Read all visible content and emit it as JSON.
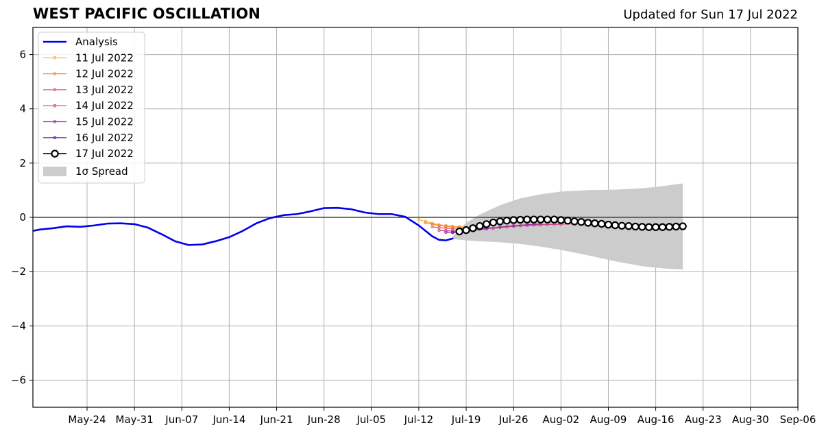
{
  "header": {
    "title": "WEST PACIFIC OSCILLATION",
    "updated": "Updated for Sun 17 Jul 2022"
  },
  "chart_data": {
    "type": "line",
    "title": "WEST PACIFIC OSCILLATION",
    "xlabel": "",
    "ylabel": "",
    "x_range": [
      "2022-05-16",
      "2022-09-06"
    ],
    "ylim": [
      -7,
      7
    ],
    "yticks": [
      -6,
      -4,
      -2,
      0,
      2,
      4,
      6
    ],
    "ytick_labels": [
      "−6",
      "−4",
      "−2",
      "0",
      "2",
      "4",
      "6"
    ],
    "xtick_dates": [
      "2022-05-24",
      "2022-05-31",
      "2022-06-07",
      "2022-06-14",
      "2022-06-21",
      "2022-06-28",
      "2022-07-05",
      "2022-07-12",
      "2022-07-19",
      "2022-07-26",
      "2022-08-02",
      "2022-08-09",
      "2022-08-16",
      "2022-08-23",
      "2022-08-30",
      "2022-09-06"
    ],
    "xtick_labels": [
      "May-24",
      "May-31",
      "Jun-07",
      "Jun-14",
      "Jun-21",
      "Jun-28",
      "Jul-05",
      "Jul-12",
      "Jul-19",
      "Jul-26",
      "Aug-02",
      "Aug-09",
      "Aug-16",
      "Aug-23",
      "Aug-30",
      "Sep-06"
    ],
    "grid": true,
    "legend_position": "top-left",
    "spread": {
      "name": "1σ Spread",
      "color": "#cccccc",
      "x": [
        "2022-07-17",
        "2022-07-19",
        "2022-07-21",
        "2022-07-24",
        "2022-07-27",
        "2022-07-30",
        "2022-08-02",
        "2022-08-06",
        "2022-08-10",
        "2022-08-14",
        "2022-08-17",
        "2022-08-20"
      ],
      "upper": [
        -0.7,
        -0.2,
        0.1,
        0.45,
        0.7,
        0.85,
        0.95,
        1.0,
        1.02,
        1.07,
        1.15,
        1.25
      ],
      "lower": [
        -0.8,
        -0.85,
        -0.88,
        -0.92,
        -0.98,
        -1.08,
        -1.2,
        -1.4,
        -1.62,
        -1.8,
        -1.88,
        -1.92
      ]
    },
    "analysis": {
      "name": "Analysis",
      "color": "#0000ee",
      "x": [
        "2022-05-16",
        "2022-05-17",
        "2022-05-19",
        "2022-05-21",
        "2022-05-23",
        "2022-05-25",
        "2022-05-27",
        "2022-05-29",
        "2022-05-31",
        "2022-06-02",
        "2022-06-04",
        "2022-06-06",
        "2022-06-08",
        "2022-06-10",
        "2022-06-12",
        "2022-06-14",
        "2022-06-16",
        "2022-06-18",
        "2022-06-20",
        "2022-06-22",
        "2022-06-24",
        "2022-06-26",
        "2022-06-28",
        "2022-06-30",
        "2022-07-02",
        "2022-07-04",
        "2022-07-06",
        "2022-07-08",
        "2022-07-10",
        "2022-07-12",
        "2022-07-14",
        "2022-07-15",
        "2022-07-16",
        "2022-07-17"
      ],
      "values": [
        -0.5,
        -0.45,
        -0.4,
        -0.33,
        -0.35,
        -0.3,
        -0.23,
        -0.22,
        -0.25,
        -0.38,
        -0.62,
        -0.88,
        -1.02,
        -1.0,
        -0.88,
        -0.73,
        -0.5,
        -0.22,
        -0.03,
        0.08,
        0.12,
        0.22,
        0.34,
        0.35,
        0.3,
        0.18,
        0.12,
        0.12,
        0.02,
        -0.3,
        -0.7,
        -0.83,
        -0.85,
        -0.78
      ]
    },
    "series": [
      {
        "name": "11 Jul 2022",
        "color": "#f5b041",
        "x": [
          "2022-07-12",
          "2022-07-13",
          "2022-07-14",
          "2022-07-15",
          "2022-07-16",
          "2022-07-17",
          "2022-07-18",
          "2022-07-19"
        ],
        "values": [
          -0.08,
          -0.15,
          -0.22,
          -0.27,
          -0.3,
          -0.33,
          -0.35,
          -0.36
        ]
      },
      {
        "name": "12 Jul 2022",
        "color": "#ef8a3e",
        "x": [
          "2022-07-13",
          "2022-07-14",
          "2022-07-15",
          "2022-07-16",
          "2022-07-17",
          "2022-07-18",
          "2022-07-19"
        ],
        "values": [
          -0.2,
          -0.25,
          -0.3,
          -0.33,
          -0.35,
          -0.37,
          -0.38
        ]
      },
      {
        "name": "13 Jul 2022",
        "color": "#e05a6f",
        "x": [
          "2022-07-14",
          "2022-07-15",
          "2022-07-16",
          "2022-07-17",
          "2022-07-18",
          "2022-07-19",
          "2022-07-20",
          "2022-07-22",
          "2022-07-24",
          "2022-07-26",
          "2022-07-28",
          "2022-07-30",
          "2022-08-01",
          "2022-08-04"
        ],
        "values": [
          -0.35,
          -0.38,
          -0.4,
          -0.42,
          -0.44,
          -0.45,
          -0.43,
          -0.4,
          -0.37,
          -0.33,
          -0.3,
          -0.28,
          -0.26,
          -0.24
        ]
      },
      {
        "name": "14 Jul 2022",
        "color": "#c2448f",
        "x": [
          "2022-07-15",
          "2022-07-16",
          "2022-07-17",
          "2022-07-18",
          "2022-07-19",
          "2022-07-21",
          "2022-07-23",
          "2022-07-25",
          "2022-07-27",
          "2022-07-29",
          "2022-07-31",
          "2022-08-02"
        ],
        "values": [
          -0.48,
          -0.5,
          -0.5,
          -0.5,
          -0.48,
          -0.44,
          -0.4,
          -0.35,
          -0.31,
          -0.28,
          -0.26,
          -0.25
        ]
      },
      {
        "name": "15 Jul 2022",
        "color": "#9a2fa5",
        "x": [
          "2022-07-16",
          "2022-07-17",
          "2022-07-18",
          "2022-07-19",
          "2022-07-20",
          "2022-07-22",
          "2022-07-24",
          "2022-07-26",
          "2022-07-28",
          "2022-07-30"
        ],
        "values": [
          -0.55,
          -0.56,
          -0.55,
          -0.52,
          -0.48,
          -0.42,
          -0.36,
          -0.31,
          -0.27,
          -0.24
        ]
      },
      {
        "name": "16 Jul 2022",
        "color": "#5b1aa0",
        "x": [
          "2022-07-17",
          "2022-07-18",
          "2022-07-19",
          "2022-07-20",
          "2022-07-21",
          "2022-07-22"
        ],
        "values": [
          -0.55,
          -0.52,
          -0.48,
          -0.44,
          -0.4,
          -0.36
        ]
      },
      {
        "name": "17 Jul 2022",
        "color": "#000000",
        "x": [
          "2022-07-18",
          "2022-07-19",
          "2022-07-20",
          "2022-07-21",
          "2022-07-22",
          "2022-07-23",
          "2022-07-24",
          "2022-07-25",
          "2022-07-26",
          "2022-07-27",
          "2022-07-28",
          "2022-07-29",
          "2022-07-30",
          "2022-07-31",
          "2022-08-01",
          "2022-08-02",
          "2022-08-03",
          "2022-08-04",
          "2022-08-05",
          "2022-08-06",
          "2022-08-07",
          "2022-08-08",
          "2022-08-09",
          "2022-08-10",
          "2022-08-11",
          "2022-08-12",
          "2022-08-13",
          "2022-08-14",
          "2022-08-15",
          "2022-08-16",
          "2022-08-17",
          "2022-08-18",
          "2022-08-19",
          "2022-08-20"
        ],
        "values": [
          -0.52,
          -0.47,
          -0.4,
          -0.32,
          -0.25,
          -0.19,
          -0.15,
          -0.12,
          -0.1,
          -0.09,
          -0.08,
          -0.08,
          -0.08,
          -0.08,
          -0.08,
          -0.1,
          -0.12,
          -0.15,
          -0.17,
          -0.2,
          -0.22,
          -0.24,
          -0.27,
          -0.29,
          -0.31,
          -0.32,
          -0.34,
          -0.35,
          -0.36,
          -0.36,
          -0.36,
          -0.35,
          -0.34,
          -0.33
        ]
      }
    ]
  }
}
